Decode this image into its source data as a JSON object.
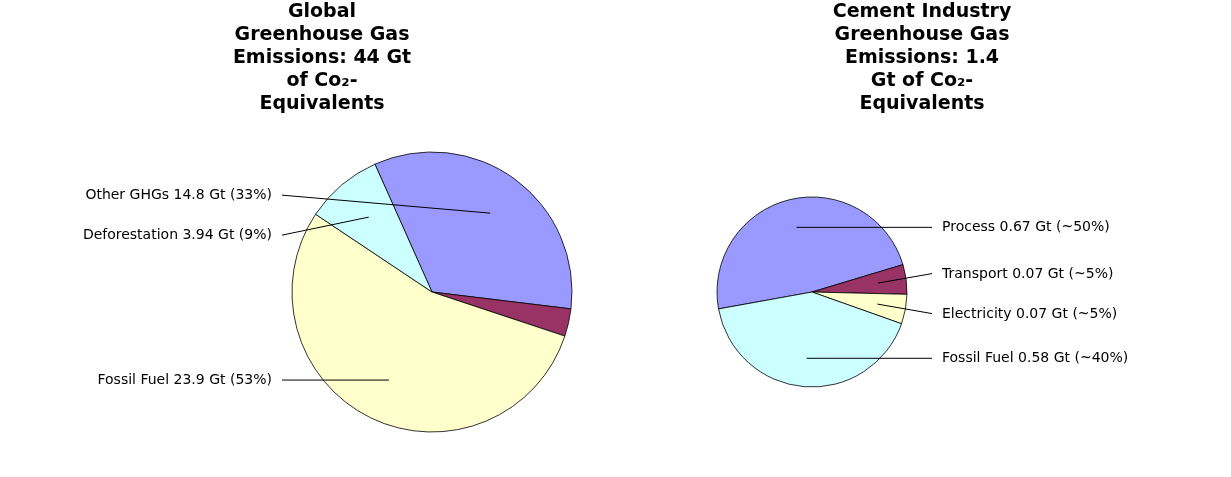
{
  "chart_data": [
    {
      "type": "pie",
      "title": "Global Greenhouse Gas Emissions: 44 Gt of Co₂-Equivalents",
      "categories": [
        "Other GHGs",
        null,
        "Fossil Fuel",
        "Deforestation"
      ],
      "values": [
        14.8,
        1.4,
        23.9,
        3.94
      ],
      "value_labels": [
        "14.8 Gt (33%)",
        null,
        "23.9 Gt (53%)",
        "3.94 Gt (9%)"
      ],
      "colors": [
        "#9999ff",
        "#993366",
        "#ffffcc",
        "#ccffff"
      ]
    },
    {
      "type": "pie",
      "title": "Cement Industry Greenhouse Gas Emissions: 1.4 Gt of Co₂-Equivalents",
      "categories": [
        "Process",
        "Transport",
        "Electricity",
        "Fossil Fuel"
      ],
      "values": [
        0.67,
        0.07,
        0.07,
        0.58
      ],
      "value_labels": [
        "0.67 Gt (~50%)",
        "0.07 Gt (~5%)",
        "0.07 Gt (~5%)",
        "0.58 Gt (~40%)"
      ],
      "colors": [
        "#9999ff",
        "#993366",
        "#ffffcc",
        "#ccffff"
      ]
    }
  ]
}
